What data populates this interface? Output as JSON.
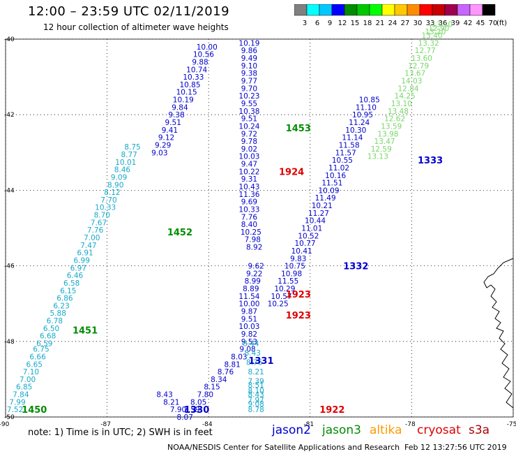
{
  "header": {
    "title": "12:00 – 23:59 UTC 02/11/2019",
    "subtitle": "12 hour collection of altimeter wave heights"
  },
  "color_scale": {
    "unit_label": "(ft)",
    "bins": [
      {
        "label": "3",
        "color": "#808080"
      },
      {
        "label": "6",
        "color": "#00ffff"
      },
      {
        "label": "9",
        "color": "#00c8ff"
      },
      {
        "label": "12",
        "color": "#0000ff"
      },
      {
        "label": "15",
        "color": "#008c00"
      },
      {
        "label": "18",
        "color": "#00c800"
      },
      {
        "label": "21",
        "color": "#00ff00"
      },
      {
        "label": "24",
        "color": "#ffff00"
      },
      {
        "label": "27",
        "color": "#ffc800"
      },
      {
        "label": "30",
        "color": "#ff8c00"
      },
      {
        "label": "33",
        "color": "#ff0000"
      },
      {
        "label": "36",
        "color": "#c80000"
      },
      {
        "label": "39",
        "color": "#a00050"
      },
      {
        "label": "42",
        "color": "#c864ff"
      },
      {
        "label": "45",
        "color": "#ff96ff"
      },
      {
        "label": "70",
        "color": "#000000"
      }
    ]
  },
  "footer": {
    "note": "note: 1) Time is in UTC; 2) SWH is in feet",
    "satellites": [
      {
        "name": "jason2",
        "color": "#0000cc"
      },
      {
        "name": "jason3",
        "color": "#008c00"
      },
      {
        "name": "altika",
        "color": "#ff9900"
      },
      {
        "name": "cryosat",
        "color": "#dd0000"
      },
      {
        "name": "s3a",
        "color": "#aa0000"
      }
    ],
    "credit": "NOAA/NESDIS Center for Satellite Applications and Research",
    "generated": "Feb 12 13:27:56 UTC 2019"
  },
  "chart_data": {
    "type": "scatter",
    "title": "12 hour collection of altimeter wave heights",
    "xlabel": "",
    "ylabel": "",
    "xlim": [
      -90,
      -75
    ],
    "ylim": [
      -50,
      -40
    ],
    "x_ticks": [
      -90,
      -87,
      -84,
      -81,
      -78,
      -75
    ],
    "x_tick_labels": [
      "-90",
      "-87",
      "-84",
      "-81",
      "-78",
      "-75"
    ],
    "y_ticks": [
      -50,
      -48,
      -46,
      -44,
      -42,
      -40
    ],
    "y_tick_labels": [
      "-50",
      "-48",
      "-46",
      "-44",
      "-42",
      "-40"
    ],
    "grid": true,
    "colors": {
      "cyan": "#17a9c9",
      "blue": "#0000cc",
      "lgreen": "#7ad66a",
      "green": "#008c00",
      "red": "#dd0000"
    },
    "tracks": [
      {
        "color": "cyan",
        "x": [
          -89.72,
          -89.65,
          -89.55,
          -89.45,
          -89.35,
          -89.25,
          -89.15,
          -89.05,
          -88.95,
          -88.85,
          -88.75,
          -88.65,
          -88.55,
          -88.45,
          -88.35,
          -88.25,
          -88.15,
          -88.05,
          -87.95,
          -87.85,
          -87.75,
          -87.65,
          -87.55,
          -87.45,
          -87.35,
          -87.25,
          -87.15,
          -87.05,
          -86.95,
          -86.85,
          -86.75,
          -86.65,
          -86.55,
          -86.45,
          -86.35,
          -86.25
        ],
        "y": [
          -49.8,
          -49.6,
          -49.4,
          -49.2,
          -49.0,
          -48.8,
          -48.6,
          -48.4,
          -48.2,
          -48.05,
          -47.85,
          -47.65,
          -47.45,
          -47.25,
          -47.05,
          -46.85,
          -46.65,
          -46.45,
          -46.25,
          -46.05,
          -45.85,
          -45.65,
          -45.45,
          -45.25,
          -45.05,
          -44.85,
          -44.65,
          -44.45,
          -44.25,
          -44.05,
          -43.85,
          -43.65,
          -43.45,
          -43.25,
          -43.05,
          -42.85
        ],
        "values": [
          "7.52",
          "7.99",
          "7.84",
          "6.85",
          "7.00",
          "7.10",
          "6.65",
          "6.66",
          "6.75",
          "6.59",
          "6.68",
          "6.50",
          "6.78",
          "5.88",
          "6.23",
          "6.86",
          "6.15",
          "6.58",
          "6.46",
          "6.97",
          "6.99",
          "6.91",
          "7.47",
          "7.00",
          "7.76",
          "7.67",
          "8.70",
          "10.33",
          "7.70",
          "8.12",
          "8.90",
          "9.09",
          "8.46",
          "10.01",
          "8.77",
          "8.75"
        ]
      },
      {
        "color": "blue",
        "x": [
          -85.45,
          -85.35,
          -85.25,
          -85.15,
          -85.05,
          -84.95,
          -84.85,
          -84.75,
          -84.65,
          -84.55,
          -84.45,
          -84.35,
          -84.25,
          -84.15,
          -84.05
        ],
        "y": [
          -43.0,
          -42.8,
          -42.6,
          -42.4,
          -42.2,
          -42.0,
          -41.8,
          -41.6,
          -41.4,
          -41.2,
          -41.0,
          -40.8,
          -40.6,
          -40.4,
          -40.2
        ],
        "values": [
          "9.03",
          "9.29",
          "9.12",
          "9.41",
          "9.51",
          "9.38",
          "9.84",
          "10.19",
          "10.15",
          "10.85",
          "10.33",
          "10.74",
          "9.88",
          "10.56",
          "10.00"
        ]
      },
      {
        "color": "blue",
        "x": [
          -82.8,
          -82.8,
          -82.8,
          -82.8,
          -82.8,
          -82.8,
          -82.8,
          -82.8,
          -82.8,
          -82.8,
          -82.8,
          -82.8,
          -82.8,
          -82.8,
          -82.8,
          -82.8,
          -82.8,
          -82.8,
          -82.8,
          -82.8,
          -82.8,
          -82.8,
          -82.8,
          -82.8,
          -82.8,
          -82.75,
          -82.7,
          -82.65
        ],
        "y": [
          -40.1,
          -40.3,
          -40.5,
          -40.7,
          -40.9,
          -41.1,
          -41.3,
          -41.5,
          -41.7,
          -41.9,
          -42.1,
          -42.3,
          -42.5,
          -42.7,
          -42.9,
          -43.1,
          -43.3,
          -43.5,
          -43.7,
          -43.9,
          -44.1,
          -44.3,
          -44.5,
          -44.7,
          -44.9,
          -45.1,
          -45.3,
          -45.5
        ],
        "values": [
          "10.19",
          "9.86",
          "9.49",
          "9.10",
          "9.38",
          "9.77",
          "9.70",
          "10.23",
          "9.55",
          "10.38",
          "9.51",
          "10.24",
          "9.72",
          "9.78",
          "9.02",
          "10.03",
          "9.47",
          "10.22",
          "9.31",
          "10.43",
          "11.36",
          "9.69",
          "10.33",
          "7.76",
          "8.40",
          "10.25",
          "7.98",
          "8.92"
        ]
      },
      {
        "color": "blue",
        "x": [
          -82.6,
          -82.65,
          -82.7,
          -82.75,
          -82.8,
          -82.8,
          -82.8,
          -82.8,
          -82.8,
          -82.8,
          -82.8,
          -82.85
        ],
        "y": [
          -46.0,
          -46.2,
          -46.4,
          -46.6,
          -46.8,
          -47.0,
          -47.2,
          -47.4,
          -47.6,
          -47.8,
          -48.0,
          -48.2
        ],
        "values": [
          "9.62",
          "9.22",
          "8.99",
          "8.89",
          "11.54",
          "10.00",
          "9.87",
          "9.51",
          "10.03",
          "9.82",
          "9.53",
          "9.08"
        ]
      },
      {
        "color": "blue",
        "x": [
          -83.1,
          -83.3,
          -83.5,
          -83.7,
          -83.9,
          -84.1,
          -84.3,
          -84.5,
          -84.7,
          -84.9,
          -85.1,
          -85.3
        ],
        "y": [
          -48.4,
          -48.6,
          -48.8,
          -49.0,
          -49.2,
          -49.4,
          -49.6,
          -49.8,
          -50.0,
          -49.8,
          -49.6,
          -49.4
        ],
        "values": [
          "8.03",
          "8.81",
          "8.76",
          "8.34",
          "8.15",
          "7.80",
          "8.05",
          "7.59",
          "8.07",
          "7.90",
          "8.21",
          "8.43"
        ]
      },
      {
        "color": "blue",
        "x": [
          -81.95,
          -81.85,
          -81.75,
          -81.65,
          -81.55,
          -81.45,
          -81.35,
          -81.25,
          -81.15,
          -81.05,
          -80.95,
          -80.85,
          -80.75,
          -80.65,
          -80.55,
          -80.45,
          -80.35,
          -80.25,
          -80.15,
          -80.05,
          -79.95,
          -79.85,
          -79.75,
          -79.65,
          -79.55,
          -79.45,
          -79.35,
          -79.25
        ],
        "y": [
          -47.0,
          -46.8,
          -46.6,
          -46.4,
          -46.2,
          -46.0,
          -45.8,
          -45.6,
          -45.4,
          -45.2,
          -45.0,
          -44.8,
          -44.6,
          -44.4,
          -44.2,
          -44.0,
          -43.8,
          -43.6,
          -43.4,
          -43.2,
          -43.0,
          -42.8,
          -42.6,
          -42.4,
          -42.2,
          -42.0,
          -41.8,
          -41.6
        ],
        "values": [
          "10.25",
          "10.57",
          "10.29",
          "11.55",
          "10.98",
          "10.75",
          "9.83",
          "10.41",
          "10.77",
          "10.52",
          "11.01",
          "10.44",
          "11.27",
          "10.21",
          "11.49",
          "10.09",
          "11.51",
          "10.16",
          "11.02",
          "10.55",
          "11.57",
          "11.58",
          "11.14",
          "10.30",
          "11.24",
          "10.95",
          "11.10",
          "10.85"
        ]
      },
      {
        "color": "lgreen",
        "x": [
          -79.0,
          -78.9,
          -78.8,
          -78.7,
          -78.6,
          -78.5,
          -78.4,
          -78.3,
          -78.2,
          -78.1,
          -78.0,
          -77.9,
          -77.8,
          -77.7,
          -77.6,
          -77.5,
          -77.4,
          -77.3,
          -77.2,
          -77.1
        ],
        "y": [
          -43.1,
          -42.9,
          -42.7,
          -42.5,
          -42.3,
          -42.1,
          -41.9,
          -41.7,
          -41.5,
          -41.3,
          -41.1,
          -40.9,
          -40.7,
          -40.5,
          -40.3,
          -40.1,
          -39.9,
          -39.8,
          -39.7,
          -39.6
        ],
        "values": [
          "13.13",
          "12.59",
          "13.47",
          "13.98",
          "13.59",
          "12.62",
          "13.48",
          "13.10",
          "14.25",
          "12.84",
          "14.03",
          "13.67",
          "12.79",
          "13.60",
          "12.77",
          "13.32",
          "13.40",
          "13.20",
          "12.90",
          "13.10"
        ]
      },
      {
        "color": "cyan",
        "x": [
          -82.75,
          -82.7,
          -82.65,
          -82.6,
          -82.6,
          -82.6,
          -82.6,
          -82.6,
          -82.6,
          -82.6,
          -82.6
        ],
        "y": [
          -48.05,
          -48.3,
          -48.55,
          -48.8,
          -49.05,
          -49.3,
          -49.55,
          -49.8,
          -49.65,
          -49.4,
          -49.15
        ],
        "values": [
          "8.44",
          "8.43",
          "8.76",
          "8.21",
          "7.39",
          "8.10",
          "7.97",
          "8.78",
          "9.08",
          "8.43",
          "8.51"
        ]
      }
    ],
    "pass_labels": [
      {
        "text": "1450",
        "x": -89.15,
        "y": -49.8,
        "color": "green"
      },
      {
        "text": "1451",
        "x": -87.65,
        "y": -47.7,
        "color": "green"
      },
      {
        "text": "1452",
        "x": -84.85,
        "y": -45.1,
        "color": "green"
      },
      {
        "text": "1453",
        "x": -81.35,
        "y": -42.35,
        "color": "green"
      },
      {
        "text": "1330",
        "x": -84.35,
        "y": -49.8,
        "color": "blue"
      },
      {
        "text": "1331",
        "x": -82.45,
        "y": -48.5,
        "color": "blue"
      },
      {
        "text": "1332",
        "x": -79.65,
        "y": -46.0,
        "color": "blue"
      },
      {
        "text": "1333",
        "x": -77.45,
        "y": -43.2,
        "color": "blue"
      },
      {
        "text": "1922",
        "x": -80.35,
        "y": -49.8,
        "color": "red"
      },
      {
        "text": "1923",
        "x": -81.35,
        "y": -46.75,
        "color": "red"
      },
      {
        "text": "1923",
        "x": -81.35,
        "y": -47.3,
        "color": "red"
      },
      {
        "text": "1924",
        "x": -81.55,
        "y": -43.5,
        "color": "red"
      }
    ]
  }
}
